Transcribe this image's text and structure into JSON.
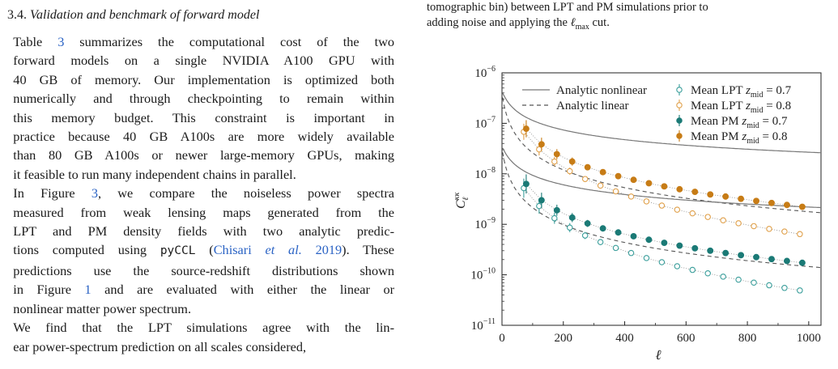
{
  "section": {
    "number": "3.4.",
    "title": "Validation and benchmark of forward model"
  },
  "body_text": {
    "p1_lines": [
      {
        "pre": "Table ",
        "link": "3",
        "post": " summarizes the computational cost of the two"
      },
      {
        "text": "forward models on a single NVIDIA A100 GPU with"
      },
      {
        "text": "40 GB of memory. Our implementation is optimized both"
      },
      {
        "text": "numerically and through checkpointing to remain within"
      },
      {
        "text": "this memory budget. This constraint is important in"
      },
      {
        "text": "practice because 40 GB A100s are more widely available"
      },
      {
        "text": "than 80 GB A100s or newer large-memory GPUs, making"
      },
      {
        "text": "it feasible to run many independent chains in parallel."
      }
    ],
    "p2_lines": [
      {
        "pre": "In Figure ",
        "link": "3",
        "post": ", we compare the noiseless power spectra"
      },
      {
        "text": "measured from weak lensing maps generated from the"
      },
      {
        "text": "LPT and PM density fields with two analytic predic-"
      },
      {
        "pre": "tions computed using ",
        "code": "pyCCL",
        "mid": " (",
        "cite": "Chisari et al. 2019",
        "post": "). These"
      },
      {
        "text": "predictions use the source-redshift distributions shown"
      },
      {
        "pre": "in Figure ",
        "link": "1",
        "post": " and are evaluated with either the linear or"
      },
      {
        "text": "nonlinear matter power spectrum."
      }
    ],
    "p3_lines": [
      {
        "text": "We find that the LPT simulations agree with the lin-"
      },
      {
        "text": "ear power-spectrum prediction on all scales considered,"
      }
    ]
  },
  "caption_top": {
    "line1": "tomographic bin) between LPT and PM simulations prior to",
    "line2_pre": "adding noise and applying the ",
    "line2_sym": "ℓ",
    "line2_sub": "max",
    "line2_post": " cut."
  },
  "chart_data": {
    "type": "line",
    "xlabel": "ℓ",
    "ylabel_main": "C",
    "ylabel_sub": "ℓ",
    "ylabel_sup": "κκ",
    "x_range": [
      0,
      1040
    ],
    "y_log_range": [
      -11,
      -6
    ],
    "x_ticks": [
      0,
      200,
      400,
      600,
      800,
      1000
    ],
    "y_ticks": [
      -11,
      -10,
      -9,
      -8,
      -7,
      -6
    ],
    "y_tick_base": "10",
    "colors": {
      "lpt": "#3a9e9b",
      "pm": "#1b7a76",
      "lpt_high": "#e0a04a",
      "pm_high": "#c77c16",
      "nonlinear": "#777777",
      "linear": "#555555"
    },
    "legend": [
      {
        "key": "nonlin",
        "label": "Analytic nonlinear"
      },
      {
        "key": "lin",
        "label": "Analytic linear"
      },
      {
        "key": "lpt07",
        "label": "Mean LPT",
        "z_sym": "z",
        "z_sub": "mid",
        "z_val": " = 0.7"
      },
      {
        "key": "lpt08",
        "label": "Mean LPT",
        "z_sym": "z",
        "z_sub": "mid",
        "z_val": " = 0.8"
      },
      {
        "key": "pm07",
        "label": "Mean PM",
        "z_sym": "z",
        "z_sub": "mid",
        "z_val": " = 0.7"
      },
      {
        "key": "pm08",
        "label": "Mean PM",
        "z_sym": "z",
        "z_sub": "mid",
        "z_val": " = 0.8"
      }
    ],
    "analytic_curves": [
      {
        "bin": "0.8",
        "kind": "nonlinear",
        "A": 3.9e-07,
        "a": 0.055,
        "b": 1.0,
        "c": 0.09
      },
      {
        "bin": "0.8",
        "kind": "linear",
        "A": 3.9e-07,
        "a": 0.082,
        "b": 1.22,
        "c": 0
      },
      {
        "bin": "0.7",
        "kind": "nonlinear",
        "A": 3.2e-08,
        "a": 0.055,
        "b": 1.0,
        "c": 0.09
      },
      {
        "bin": "0.7",
        "kind": "linear",
        "A": 3.2e-08,
        "a": 0.082,
        "b": 1.22,
        "c": 0
      }
    ],
    "ell": [
      75,
      125,
      175,
      225,
      275,
      325,
      375,
      425,
      475,
      525,
      575,
      625,
      675,
      725,
      775,
      825,
      875,
      925,
      975
    ],
    "series": [
      {
        "key": "lpt08",
        "name": "Mean LPT z_mid = 0.8",
        "filled": false,
        "values": [
          6.8e-08,
          3.05e-08,
          1.75e-08,
          1.13e-08,
          7.9e-09,
          5.85e-09,
          4.5e-09,
          3.55e-09,
          2.85e-09,
          2.35e-09,
          1.95e-09,
          1.65e-09,
          1.4e-09,
          1.2e-09,
          1.05e-09,
          9.2e-10,
          8.1e-10,
          7.2e-10,
          6.4e-10
        ],
        "errs": [
          0.16,
          0.12,
          0.09,
          0.07,
          0.05,
          0.04,
          0.035,
          0.03,
          0.025,
          0.022,
          0.02,
          0.018,
          0.016,
          0.015,
          0.014,
          0.013,
          0.012,
          0.011,
          0.01
        ]
      },
      {
        "key": "pm08",
        "name": "Mean PM z_mid = 0.8",
        "filled": true,
        "values": [
          7.8e-08,
          3.85e-08,
          2.45e-08,
          1.75e-08,
          1.35e-08,
          1.08e-08,
          9e-09,
          7.6e-09,
          6.5e-09,
          5.65e-09,
          4.95e-09,
          4.4e-09,
          3.9e-09,
          3.55e-09,
          3.2e-09,
          2.9e-09,
          2.65e-09,
          2.42e-09,
          2.22e-09
        ],
        "errs": [
          0.17,
          0.13,
          0.1,
          0.08,
          0.06,
          0.05,
          0.04,
          0.035,
          0.03,
          0.027,
          0.024,
          0.022,
          0.02,
          0.018,
          0.016,
          0.015,
          0.014,
          0.013,
          0.012
        ]
      },
      {
        "key": "lpt07",
        "name": "Mean LPT z_mid = 0.7",
        "filled": false,
        "values": [
          5.2e-09,
          2.3e-09,
          1.32e-09,
          8.6e-10,
          6e-10,
          4.45e-10,
          3.4e-10,
          2.7e-10,
          2.15e-10,
          1.78e-10,
          1.48e-10,
          1.25e-10,
          1.07e-10,
          9.2e-11,
          8e-11,
          7e-11,
          6.2e-11,
          5.5e-11,
          4.9e-11
        ],
        "errs": [
          0.19,
          0.15,
          0.11,
          0.09,
          0.07,
          0.06,
          0.05,
          0.045,
          0.04,
          0.035,
          0.03,
          0.028,
          0.025,
          0.023,
          0.021,
          0.02,
          0.018,
          0.017,
          0.016
        ]
      },
      {
        "key": "pm07",
        "name": "Mean PM z_mid = 0.7",
        "filled": true,
        "values": [
          6.3e-09,
          3e-09,
          1.9e-09,
          1.36e-09,
          1.04e-09,
          8.3e-10,
          6.9e-10,
          5.8e-10,
          4.95e-10,
          4.3e-10,
          3.78e-10,
          3.35e-10,
          3e-10,
          2.7e-10,
          2.45e-10,
          2.24e-10,
          2.05e-10,
          1.88e-10,
          1.73e-10
        ],
        "errs": [
          0.19,
          0.15,
          0.11,
          0.09,
          0.07,
          0.06,
          0.05,
          0.045,
          0.04,
          0.035,
          0.03,
          0.028,
          0.025,
          0.023,
          0.021,
          0.02,
          0.018,
          0.017,
          0.016
        ]
      }
    ]
  }
}
